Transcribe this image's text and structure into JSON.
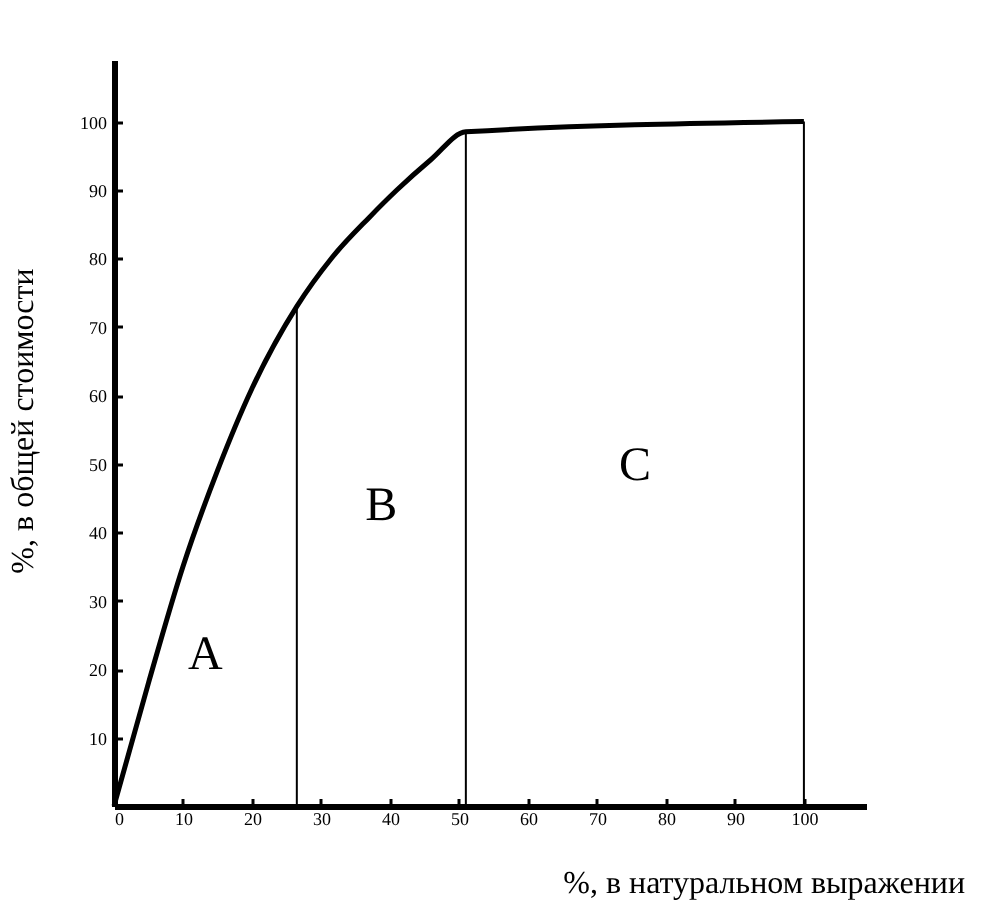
{
  "chart_data": {
    "type": "line",
    "xlabel": "%, в натуральном выражении",
    "ylabel": "%, в общей стоимости",
    "x": [
      0,
      5,
      10,
      15,
      20,
      26.5,
      31.5,
      37,
      41,
      46,
      51,
      100
    ],
    "series": [
      {
        "color": "#000000",
        "values": [
          0,
          18,
          35,
          49,
          61,
          73,
          80,
          86,
          90,
          94.5,
          98.5,
          100
        ]
      }
    ],
    "xlim": [
      0,
      109
    ],
    "ylim": [
      0,
      109
    ],
    "xticks": [
      0,
      10,
      20,
      30,
      40,
      50,
      60,
      70,
      80,
      90,
      100
    ],
    "yticks": [
      {
        "value": 0,
        "label": null
      },
      10,
      20,
      30,
      40,
      50,
      60,
      70,
      80,
      90,
      100
    ],
    "ref_lines": [
      {
        "axis": "x",
        "value": 26.5,
        "color": "#000000"
      },
      {
        "axis": "x",
        "value": 51,
        "color": "#000000"
      },
      {
        "axis": "x",
        "value": 100,
        "color": "#000000"
      }
    ],
    "annotations": [
      "A",
      "B",
      "C"
    ],
    "grid": false,
    "marker": "none",
    "line_style": "solid"
  }
}
